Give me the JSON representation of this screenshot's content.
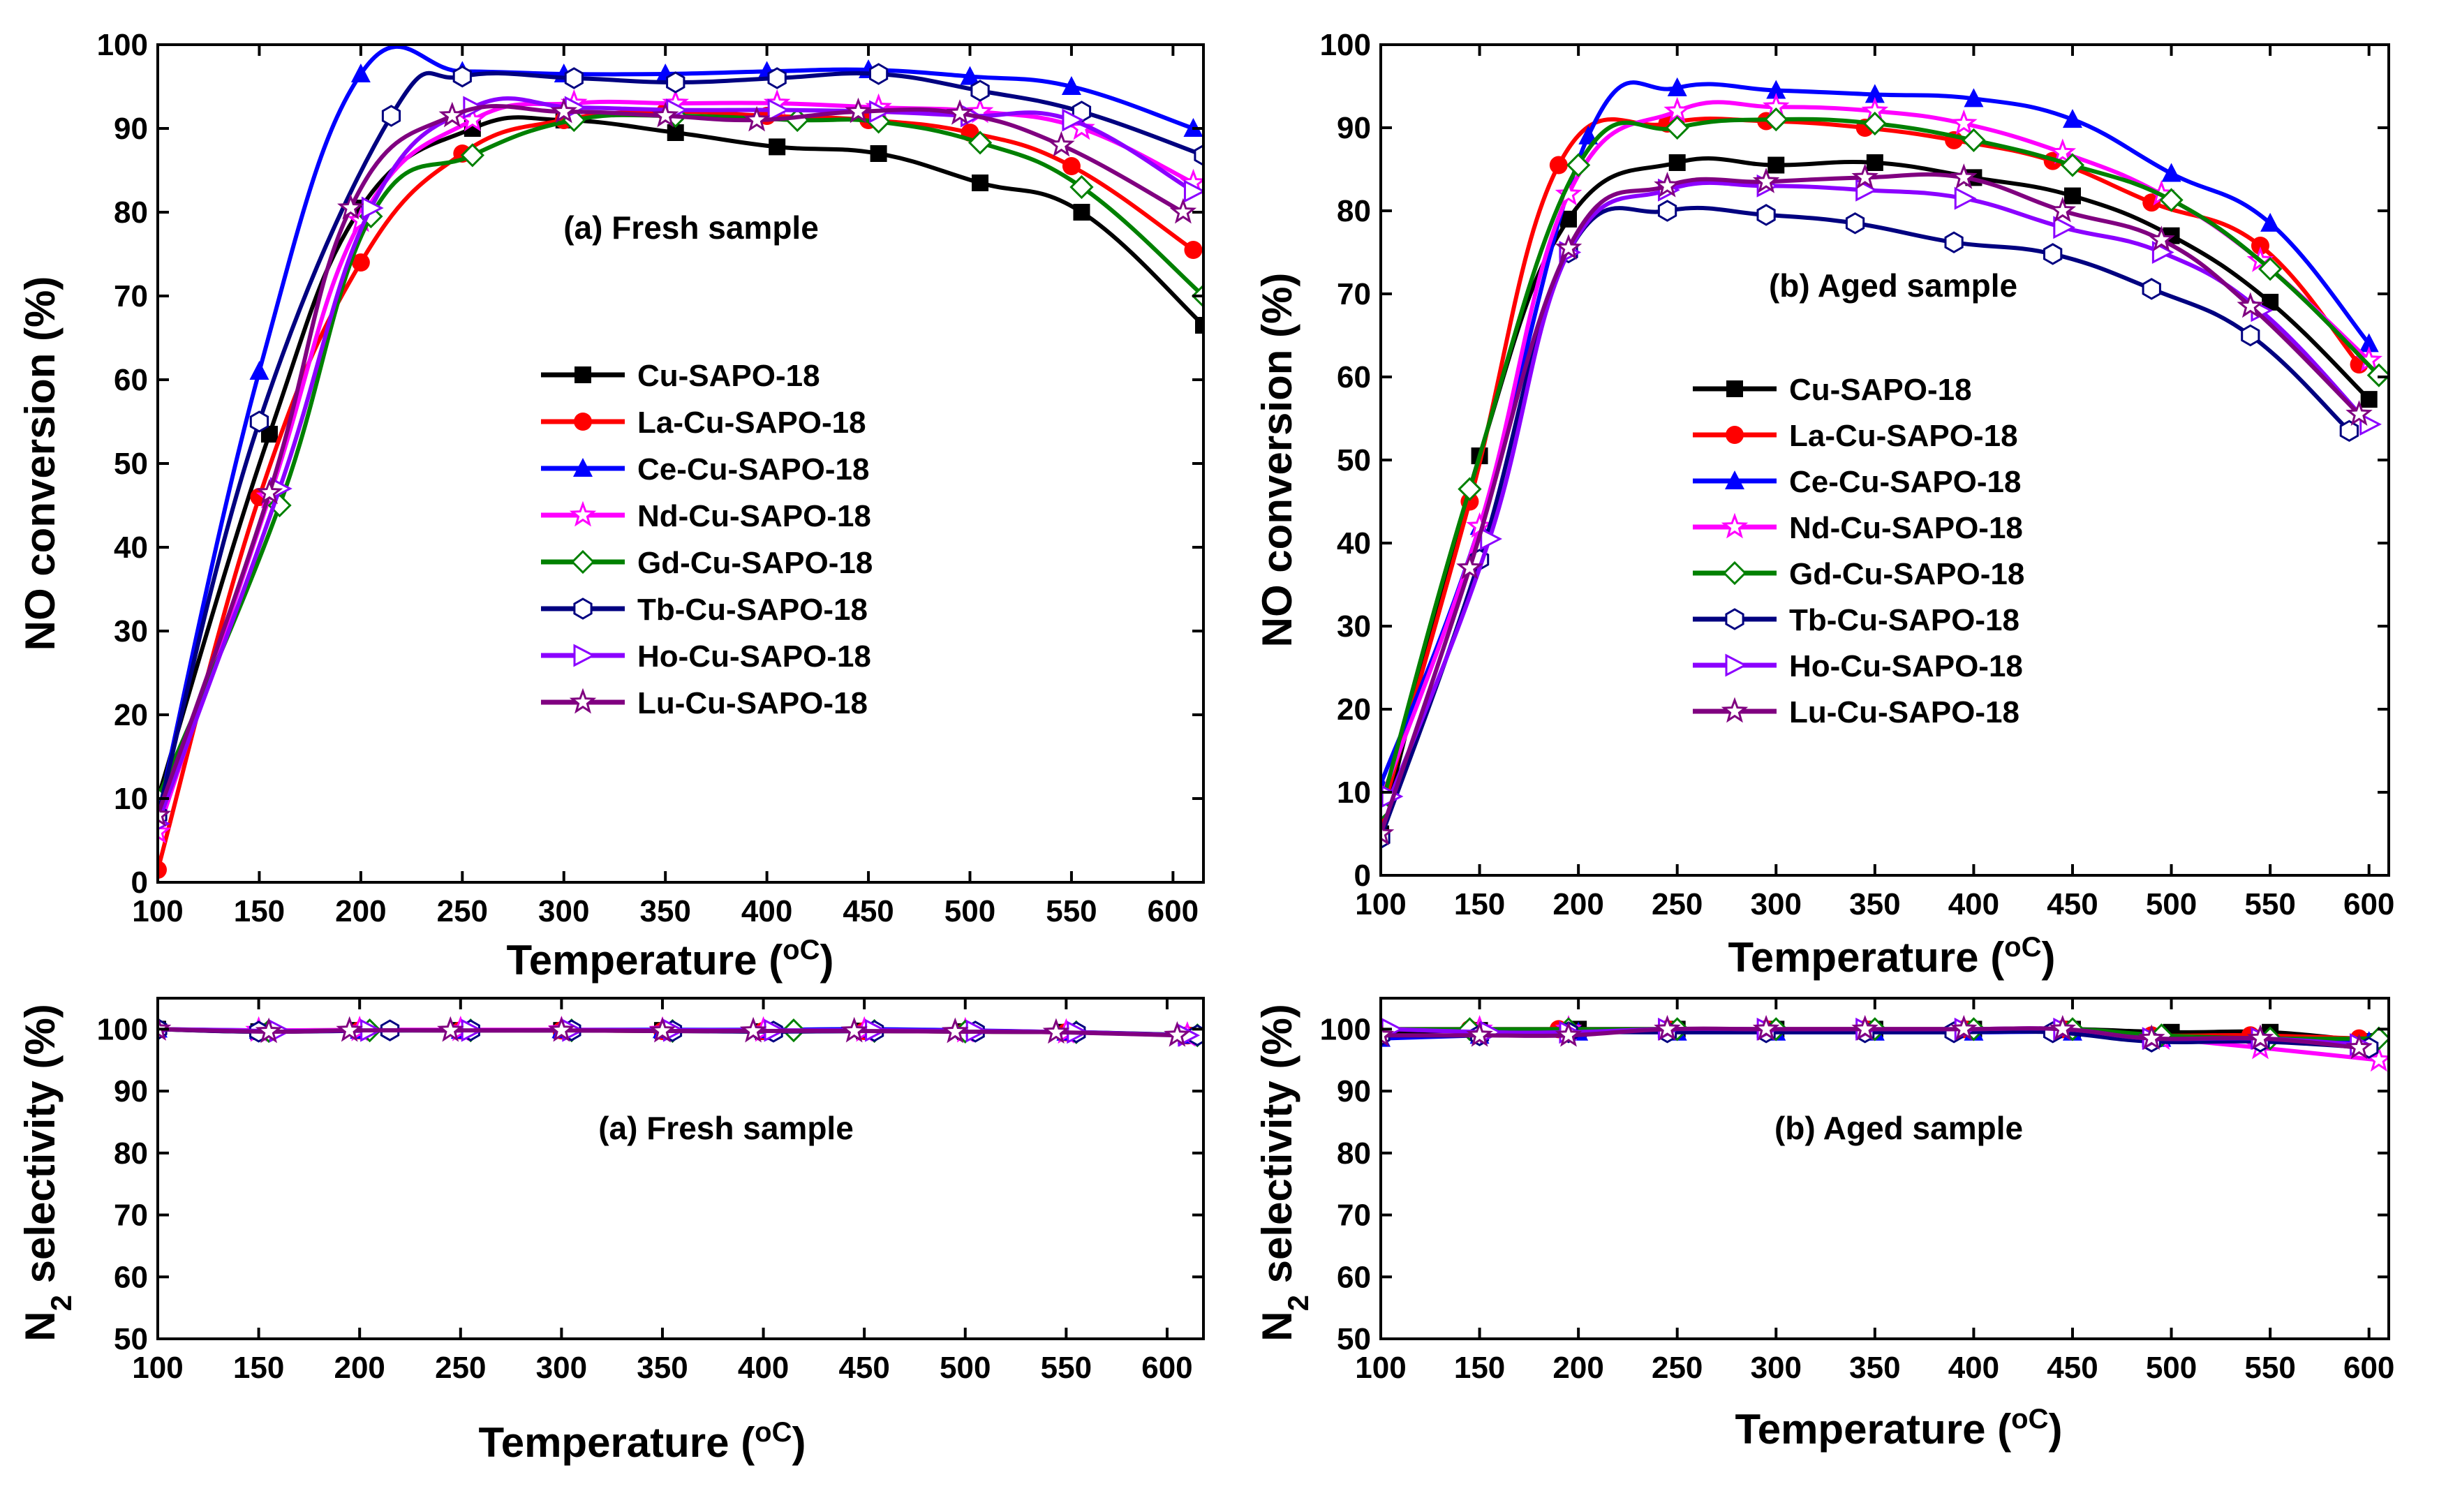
{
  "figure": {
    "legend_labels": [
      "Cu-SAPO-18",
      "La-Cu-SAPO-18",
      "Ce-Cu-SAPO-18",
      "Nd-Cu-SAPO-18",
      "Gd-Cu-SAPO-18",
      "Tb-Cu-SAPO-18",
      "Ho-Cu-SAPO-18",
      "Lu-Cu-SAPO-18"
    ],
    "series_colors": [
      "#000000",
      "#ff0000",
      "#0000ff",
      "#ff00ff",
      "#008000",
      "#000080",
      "#8b00ff",
      "#800080"
    ],
    "series_markers": [
      "square",
      "circle",
      "triangle",
      "star",
      "diamond",
      "hexagon",
      "triangle-right",
      "star"
    ]
  },
  "chart_data": [
    {
      "id": "fresh-conversion",
      "type": "line",
      "annotation": "(a) Fresh sample",
      "xlabel_prefix": "Temperature (",
      "xlabel_unit": "oC",
      "xlabel_suffix": ")",
      "ylabel": "NO conversion (%)",
      "xlim": [
        100,
        615
      ],
      "ylim": [
        0,
        100
      ],
      "xticks": [
        100,
        150,
        200,
        250,
        300,
        350,
        400,
        450,
        500,
        550,
        600
      ],
      "yticks": [
        0,
        10,
        20,
        30,
        40,
        50,
        60,
        70,
        80,
        90,
        100
      ],
      "legend_position": "center",
      "series": [
        {
          "name": "Cu-SAPO-18",
          "x": [
            100,
            155,
            200,
            255,
            300,
            355,
            405,
            455,
            505,
            555,
            615
          ],
          "y": [
            10,
            53.5,
            80.5,
            90,
            91,
            89.5,
            87.8,
            87,
            83.5,
            80,
            66.5
          ]
        },
        {
          "name": "La-Cu-SAPO-18",
          "x": [
            100,
            150,
            200,
            250,
            300,
            350,
            400,
            450,
            500,
            550,
            610
          ],
          "y": [
            1.5,
            46,
            74,
            87,
            91,
            92,
            91.5,
            91,
            89.5,
            85.5,
            75.5
          ]
        },
        {
          "name": "Ce-Cu-SAPO-18",
          "x": [
            100,
            150,
            200,
            250,
            300,
            350,
            400,
            450,
            500,
            550,
            610
          ],
          "y": [
            8,
            61,
            96.5,
            96.8,
            96.5,
            96.5,
            96.8,
            97,
            96.2,
            95,
            90
          ]
        },
        {
          "name": "Nd-Cu-SAPO-18",
          "x": [
            100,
            155,
            200,
            255,
            305,
            355,
            405,
            455,
            505,
            555,
            610
          ],
          "y": [
            6,
            46,
            79,
            91,
            93,
            93,
            93,
            92.5,
            92,
            90,
            83.5
          ]
        },
        {
          "name": "Gd-Cu-SAPO-18",
          "x": [
            100,
            160,
            205,
            255,
            305,
            355,
            415,
            455,
            505,
            555,
            615
          ],
          "y": [
            10,
            45,
            79.5,
            86.8,
            91,
            91.5,
            91,
            90.8,
            88.3,
            83,
            70
          ]
        },
        {
          "name": "Tb-Cu-SAPO-18",
          "x": [
            100,
            150,
            215,
            250,
            305,
            355,
            405,
            455,
            505,
            555,
            615
          ],
          "y": [
            8,
            55,
            91.5,
            96.2,
            96,
            95.5,
            96,
            96.5,
            94.5,
            92,
            86.8
          ]
        },
        {
          "name": "Ho-Cu-SAPO-18",
          "x": [
            100,
            160,
            205,
            255,
            305,
            355,
            405,
            455,
            500,
            550,
            610
          ],
          "y": [
            7,
            47,
            80.5,
            92.5,
            92.5,
            92.2,
            92.2,
            92,
            91.5,
            91,
            82.5
          ]
        },
        {
          "name": "Lu-Cu-SAPO-18",
          "x": [
            100,
            155,
            195,
            245,
            300,
            350,
            395,
            445,
            495,
            545,
            605
          ],
          "y": [
            8,
            46.5,
            80.5,
            91.5,
            92,
            91.5,
            91,
            92,
            91.8,
            88,
            80
          ]
        }
      ]
    },
    {
      "id": "aged-conversion",
      "type": "line",
      "annotation": "(b) Aged sample",
      "xlabel_prefix": "Temperature (",
      "xlabel_unit": "oC",
      "xlabel_suffix": ")",
      "ylabel": "NO conversion (%)",
      "xlim": [
        100,
        610
      ],
      "ylim": [
        0,
        100
      ],
      "xticks": [
        100,
        150,
        200,
        250,
        300,
        350,
        400,
        450,
        500,
        550,
        600
      ],
      "yticks": [
        0,
        10,
        20,
        30,
        40,
        50,
        60,
        70,
        80,
        90,
        100
      ],
      "legend_position": "center",
      "series": [
        {
          "name": "Cu-SAPO-18",
          "x": [
            100,
            150,
            195,
            250,
            300,
            350,
            400,
            450,
            500,
            550,
            600
          ],
          "y": [
            5,
            50.5,
            79,
            85.8,
            85.5,
            85.8,
            84,
            81.8,
            77,
            69,
            57.3
          ]
        },
        {
          "name": "La-Cu-SAPO-18",
          "x": [
            100,
            145,
            190,
            245,
            295,
            345,
            390,
            440,
            490,
            545,
            595
          ],
          "y": [
            7,
            45,
            85.5,
            90.5,
            90.8,
            90,
            88.5,
            86,
            81,
            75.8,
            61.5
          ]
        },
        {
          "name": "Ce-Cu-SAPO-18",
          "x": [
            100,
            150,
            205,
            250,
            300,
            350,
            400,
            450,
            500,
            550,
            600
          ],
          "y": [
            11,
            42,
            89,
            94.8,
            94.5,
            94,
            93.5,
            91,
            84.5,
            78.5,
            64
          ]
        },
        {
          "name": "Nd-Cu-SAPO-18",
          "x": [
            100,
            150,
            195,
            250,
            300,
            350,
            395,
            445,
            495,
            545,
            600
          ],
          "y": [
            9,
            42,
            82,
            92,
            92.5,
            92,
            90.5,
            87,
            82,
            74,
            62
          ]
        },
        {
          "name": "Gd-Cu-SAPO-18",
          "x": [
            100,
            145,
            200,
            250,
            300,
            350,
            400,
            450,
            500,
            550,
            605
          ],
          "y": [
            8,
            46.5,
            85.5,
            90,
            91,
            90.5,
            88.5,
            85.5,
            81.3,
            73,
            60.2
          ]
        },
        {
          "name": "Tb-Cu-SAPO-18",
          "x": [
            100,
            150,
            195,
            245,
            295,
            340,
            390,
            440,
            490,
            540,
            590
          ],
          "y": [
            4.5,
            38,
            75,
            80,
            79.5,
            78.5,
            76.2,
            74.8,
            70.6,
            65,
            53.5
          ]
        },
        {
          "name": "Ho-Cu-SAPO-18",
          "x": [
            105,
            155,
            195,
            245,
            295,
            345,
            395,
            445,
            495,
            545,
            600
          ],
          "y": [
            9.5,
            40.5,
            75,
            82.5,
            83,
            82.5,
            81.5,
            78,
            75,
            68,
            54.3
          ]
        },
        {
          "name": "Lu-Cu-SAPO-18",
          "x": [
            100,
            145,
            195,
            245,
            295,
            345,
            395,
            445,
            495,
            540,
            595
          ],
          "y": [
            5,
            37,
            75.5,
            83,
            83.5,
            84,
            84,
            80,
            76.5,
            68.5,
            55.5
          ]
        }
      ]
    },
    {
      "id": "fresh-selectivity",
      "type": "line",
      "annotation": "(a) Fresh sample",
      "xlabel_prefix": "Temperature (",
      "xlabel_unit": "oC",
      "xlabel_suffix": ")",
      "ylabel_prefix": "N",
      "ylabel_sub": "2",
      "ylabel_suffix": " selectivity (%)",
      "xlim": [
        100,
        618
      ],
      "ylim": [
        50,
        105
      ],
      "xticks": [
        100,
        150,
        200,
        250,
        300,
        350,
        400,
        450,
        500,
        550,
        600
      ],
      "yticks": [
        50,
        60,
        70,
        80,
        90,
        100
      ],
      "series": [
        {
          "name": "Cu-SAPO-18",
          "x": [
            100,
            150,
            200,
            250,
            300,
            350,
            400,
            450,
            500,
            550,
            610
          ],
          "y": [
            100,
            99.6,
            99.8,
            99.8,
            99.8,
            99.8,
            99.6,
            99.7,
            99.6,
            99.5,
            99
          ]
        },
        {
          "name": "La-Cu-SAPO-18",
          "x": [
            100,
            155,
            200,
            250,
            300,
            350,
            400,
            450,
            500,
            550,
            610
          ],
          "y": [
            100,
            99.7,
            99.8,
            99.8,
            99.8,
            99.7,
            99.7,
            99.7,
            99.6,
            99.5,
            99
          ]
        },
        {
          "name": "Ce-Cu-SAPO-18",
          "x": [
            100,
            150,
            200,
            250,
            300,
            350,
            400,
            450,
            500,
            550,
            610
          ],
          "y": [
            100,
            99.8,
            99.8,
            99.8,
            99.9,
            99.9,
            99.9,
            100,
            99.8,
            99.5,
            99
          ]
        },
        {
          "name": "Nd-Cu-SAPO-18",
          "x": [
            100,
            150,
            200,
            250,
            300,
            350,
            400,
            450,
            500,
            550,
            610
          ],
          "y": [
            100,
            99.8,
            99.9,
            99.9,
            99.9,
            99.8,
            99.8,
            99.8,
            99.7,
            99.5,
            99
          ]
        },
        {
          "name": "Gd-Cu-SAPO-18",
          "x": [
            100,
            155,
            205,
            255,
            305,
            355,
            415,
            455,
            500,
            555,
            615
          ],
          "y": [
            100,
            99.7,
            99.8,
            99.8,
            99.8,
            99.7,
            99.8,
            99.7,
            99.6,
            99.5,
            99
          ]
        },
        {
          "name": "Tb-Cu-SAPO-18",
          "x": [
            100,
            150,
            215,
            255,
            305,
            355,
            405,
            455,
            505,
            555,
            615
          ],
          "y": [
            100,
            99.6,
            99.8,
            99.8,
            99.8,
            99.7,
            99.6,
            99.7,
            99.6,
            99.5,
            99
          ]
        },
        {
          "name": "Ho-Cu-SAPO-18",
          "x": [
            100,
            160,
            205,
            255,
            305,
            355,
            405,
            455,
            505,
            555,
            610
          ],
          "y": [
            100,
            99.7,
            99.8,
            99.8,
            99.8,
            99.8,
            99.8,
            99.8,
            99.7,
            99.5,
            99
          ]
        },
        {
          "name": "Lu-Cu-SAPO-18",
          "x": [
            100,
            155,
            195,
            245,
            300,
            350,
            395,
            445,
            495,
            545,
            605
          ],
          "y": [
            100,
            99.6,
            99.8,
            99.8,
            99.8,
            99.7,
            99.7,
            99.7,
            99.6,
            99.5,
            99
          ]
        }
      ]
    },
    {
      "id": "aged-selectivity",
      "type": "line",
      "annotation": "(b) Aged sample",
      "xlabel_prefix": "Temperature (",
      "xlabel_unit": "oC",
      "xlabel_suffix": ")",
      "ylabel_prefix": "N",
      "ylabel_sub": "2",
      "ylabel_suffix": " selectivity (%)",
      "xlim": [
        100,
        610
      ],
      "ylim": [
        50,
        105
      ],
      "xticks": [
        100,
        150,
        200,
        250,
        300,
        350,
        400,
        450,
        500,
        550,
        600
      ],
      "yticks": [
        50,
        60,
        70,
        80,
        90,
        100
      ],
      "series": [
        {
          "name": "Cu-SAPO-18",
          "x": [
            100,
            150,
            200,
            250,
            300,
            350,
            400,
            450,
            500,
            550,
            600
          ],
          "y": [
            99.5,
            99.8,
            100,
            100,
            100,
            100,
            100,
            100,
            99.5,
            99.5,
            98
          ]
        },
        {
          "name": "La-Cu-SAPO-18",
          "x": [
            100,
            145,
            190,
            245,
            295,
            345,
            395,
            445,
            490,
            540,
            595
          ],
          "y": [
            100,
            100,
            100,
            100,
            100,
            100,
            100,
            100,
            99,
            99,
            98.5
          ]
        },
        {
          "name": "Ce-Cu-SAPO-18",
          "x": [
            100,
            150,
            200,
            250,
            300,
            350,
            400,
            450,
            495,
            545,
            600
          ],
          "y": [
            98.5,
            99,
            99.5,
            99.5,
            99.5,
            99.5,
            99.5,
            99.5,
            98.5,
            98.5,
            98
          ]
        },
        {
          "name": "Nd-Cu-SAPO-18",
          "x": [
            100,
            150,
            195,
            245,
            295,
            345,
            395,
            445,
            495,
            545,
            605
          ],
          "y": [
            100,
            100,
            100,
            100,
            100,
            100,
            100,
            100,
            98.5,
            97,
            95
          ]
        },
        {
          "name": "Gd-Cu-SAPO-18",
          "x": [
            100,
            145,
            195,
            250,
            300,
            350,
            400,
            450,
            495,
            550,
            605
          ],
          "y": [
            100,
            100,
            100,
            100,
            100,
            100,
            100,
            100,
            99,
            98.5,
            98.5
          ]
        },
        {
          "name": "Tb-Cu-SAPO-18",
          "x": [
            100,
            150,
            195,
            245,
            295,
            345,
            390,
            440,
            490,
            545,
            600
          ],
          "y": [
            99,
            99,
            99.5,
            99.5,
            99.5,
            99.5,
            99.5,
            99.5,
            98,
            98,
            97
          ]
        },
        {
          "name": "Ho-Cu-SAPO-18",
          "x": [
            105,
            155,
            195,
            245,
            295,
            345,
            395,
            445,
            490,
            545,
            595
          ],
          "y": [
            100,
            99.5,
            99.5,
            100,
            100,
            100,
            100,
            100,
            98.5,
            98.5,
            97.5
          ]
        },
        {
          "name": "Lu-Cu-SAPO-18",
          "x": [
            100,
            150,
            195,
            245,
            295,
            345,
            395,
            445,
            490,
            545,
            595
          ],
          "y": [
            99,
            99,
            99,
            100,
            100,
            100,
            100,
            100,
            98.5,
            98.5,
            97
          ]
        }
      ]
    }
  ]
}
